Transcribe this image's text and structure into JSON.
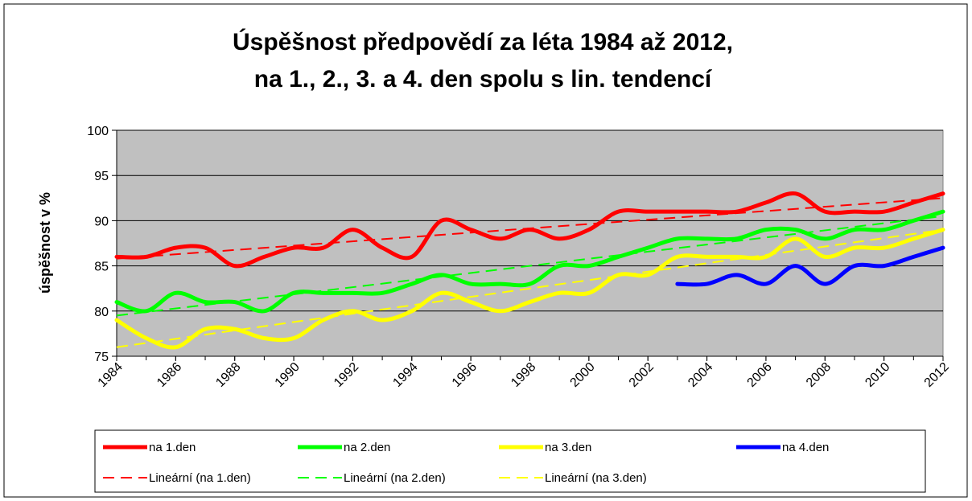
{
  "chart_data": {
    "type": "line",
    "title": [
      "Úspěšnost předpovědí za léta 1984 až 2012,",
      "na 1., 2., 3. a 4. den spolu s lin. tendencí"
    ],
    "ylabel": "úspěšnost v %",
    "x": [
      1984,
      1985,
      1986,
      1987,
      1988,
      1989,
      1990,
      1991,
      1992,
      1993,
      1994,
      1995,
      1996,
      1997,
      1998,
      1999,
      2000,
      2001,
      2002,
      2003,
      2004,
      2005,
      2006,
      2007,
      2008,
      2009,
      2010,
      2011,
      2012
    ],
    "xlim": [
      1984,
      2012
    ],
    "xticks": [
      1984,
      1986,
      1988,
      1990,
      1992,
      1994,
      1996,
      1998,
      2000,
      2002,
      2004,
      2006,
      2008,
      2010,
      2012
    ],
    "ylim": [
      75,
      100
    ],
    "yticks": [
      75,
      80,
      85,
      90,
      95,
      100
    ],
    "grid": true,
    "background": "#c0c0c0",
    "series": [
      {
        "name": "na 1.den",
        "color": "#ff0000",
        "values": [
          86,
          86,
          87,
          87,
          85,
          86,
          87,
          87,
          89,
          87,
          86,
          90,
          89,
          88,
          89,
          88,
          89,
          91,
          91,
          91,
          91,
          91,
          92,
          93,
          91,
          91,
          91,
          92,
          93
        ]
      },
      {
        "name": "na 2.den",
        "color": "#00ff00",
        "values": [
          81,
          80,
          82,
          81,
          81,
          80,
          82,
          82,
          82,
          82,
          83,
          84,
          83,
          83,
          83,
          85,
          85,
          86,
          87,
          88,
          88,
          88,
          89,
          89,
          88,
          89,
          89,
          90,
          91
        ]
      },
      {
        "name": "na 3.den",
        "color": "#ffff00",
        "values": [
          79,
          77,
          76,
          78,
          78,
          77,
          77,
          79,
          80,
          79,
          80,
          82,
          81,
          80,
          81,
          82,
          82,
          84,
          84,
          86,
          86,
          86,
          86,
          88,
          86,
          87,
          87,
          88,
          89
        ]
      },
      {
        "name": "na 4.den",
        "color": "#0000ff",
        "values": [
          null,
          null,
          null,
          null,
          null,
          null,
          null,
          null,
          null,
          null,
          null,
          null,
          null,
          null,
          null,
          null,
          null,
          null,
          null,
          83,
          83,
          84,
          83,
          85,
          83,
          85,
          85,
          86,
          87
        ]
      }
    ],
    "trends": [
      {
        "name": "Lineární (na 1.den)",
        "color": "#ff0000",
        "x": [
          1984,
          2012
        ],
        "values": [
          85.8,
          92.5
        ]
      },
      {
        "name": "Lineární (na 2.den)",
        "color": "#00ff00",
        "x": [
          1984,
          2012
        ],
        "values": [
          79.5,
          90.5
        ]
      },
      {
        "name": "Lineární (na 3.den)",
        "color": "#ffff00",
        "x": [
          1984,
          2012
        ],
        "values": [
          76,
          89
        ]
      }
    ]
  }
}
